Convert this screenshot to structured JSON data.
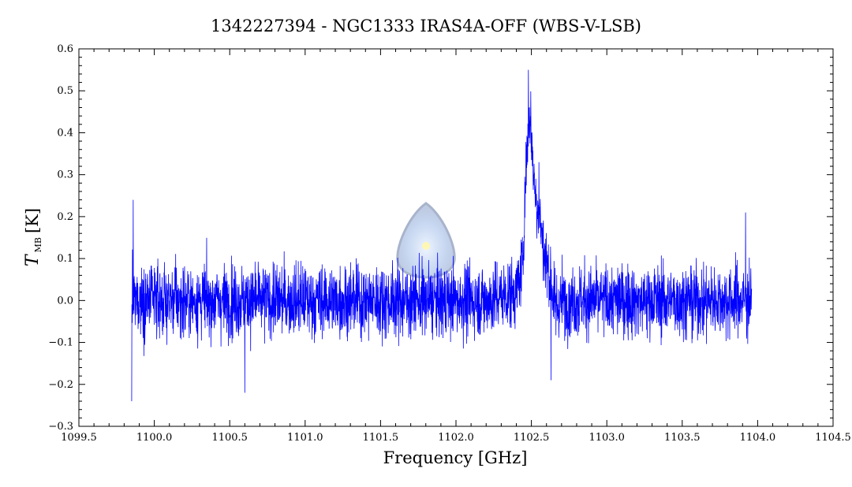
{
  "chart_data": {
    "type": "line",
    "title": "1342227394 - NGC1333 IRAS4A-OFF (WBS-V-LSB)",
    "xlabel": "Frequency [GHz]",
    "ylabel": {
      "symbol": "T",
      "subscript": "MB",
      "unit": "[K]"
    },
    "xlim": [
      1099.5,
      1104.5
    ],
    "ylim": [
      -0.3,
      0.6
    ],
    "x_ticks": [
      "1099.5",
      "1100.0",
      "1100.5",
      "1101.0",
      "1101.5",
      "1102.0",
      "1102.5",
      "1103.0",
      "1103.5",
      "1104.0",
      "1104.5"
    ],
    "y_ticks": [
      "−0.3",
      "−0.2",
      "−0.1",
      "0.0",
      "0.1",
      "0.2",
      "0.3",
      "0.4",
      "0.5",
      "0.6"
    ],
    "grid": false,
    "series": [
      {
        "color": "#0000ff",
        "x_range": [
          1099.85,
          1103.96
        ],
        "noise_rms_K": 0.05,
        "x": [
          1099.85,
          1099.9,
          1100.0,
          1100.2,
          1100.5,
          1100.8,
          1101.0,
          1101.2,
          1101.4,
          1101.6,
          1101.8,
          1102.0,
          1102.2,
          1102.4,
          1102.44,
          1102.47,
          1102.49,
          1102.51,
          1102.53,
          1102.55,
          1102.58,
          1102.62,
          1102.66,
          1102.7,
          1102.9,
          1103.2,
          1103.5,
          1103.8,
          1103.96
        ],
        "y": [
          0.0,
          0.0,
          0.0,
          0.0,
          0.0,
          0.0,
          0.0,
          0.0,
          0.0,
          0.0,
          0.0,
          0.0,
          0.0,
          0.02,
          0.08,
          0.36,
          0.45,
          0.33,
          0.24,
          0.22,
          0.12,
          0.06,
          -0.02,
          0.0,
          0.0,
          0.0,
          0.0,
          0.0,
          0.0
        ],
        "spikes": [
          {
            "x": 1099.85,
            "y": -0.24
          },
          {
            "x": 1099.86,
            "y": 0.24
          },
          {
            "x": 1100.6,
            "y": -0.22
          },
          {
            "x": 1102.48,
            "y": 0.55
          },
          {
            "x": 1102.55,
            "y": 0.33
          },
          {
            "x": 1102.63,
            "y": -0.19
          },
          {
            "x": 1103.92,
            "y": 0.21
          }
        ]
      }
    ]
  }
}
